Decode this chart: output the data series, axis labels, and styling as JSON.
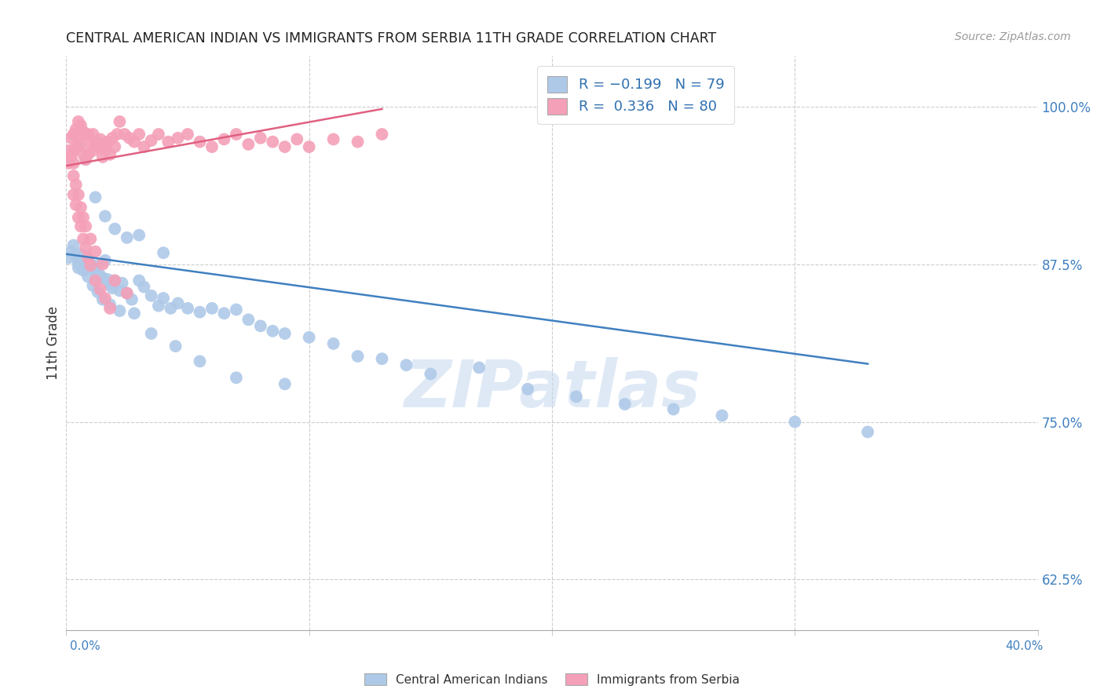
{
  "title": "CENTRAL AMERICAN INDIAN VS IMMIGRANTS FROM SERBIA 11TH GRADE CORRELATION CHART",
  "source": "Source: ZipAtlas.com",
  "ylabel": "11th Grade",
  "yticks": [
    0.625,
    0.75,
    0.875,
    1.0
  ],
  "ytick_labels": [
    "62.5%",
    "75.0%",
    "87.5%",
    "100.0%"
  ],
  "xmin": 0.0,
  "xmax": 0.4,
  "ymin": 0.585,
  "ymax": 1.04,
  "blue_color": "#aec9e8",
  "pink_color": "#f4a0b8",
  "line_blue": "#4080c0",
  "line_pink": "#e06080",
  "watermark_text": "ZIPatlas",
  "blue_scatter_x": [
    0.001,
    0.002,
    0.003,
    0.004,
    0.005,
    0.005,
    0.006,
    0.007,
    0.007,
    0.008,
    0.009,
    0.01,
    0.011,
    0.012,
    0.013,
    0.014,
    0.015,
    0.016,
    0.017,
    0.018,
    0.019,
    0.02,
    0.022,
    0.023,
    0.025,
    0.027,
    0.03,
    0.032,
    0.035,
    0.038,
    0.04,
    0.043,
    0.046,
    0.05,
    0.055,
    0.06,
    0.065,
    0.07,
    0.075,
    0.08,
    0.085,
    0.09,
    0.1,
    0.11,
    0.12,
    0.13,
    0.14,
    0.15,
    0.17,
    0.19,
    0.21,
    0.23,
    0.25,
    0.27,
    0.3,
    0.33,
    0.005,
    0.008,
    0.012,
    0.016,
    0.02,
    0.025,
    0.03,
    0.04,
    0.005,
    0.007,
    0.009,
    0.011,
    0.013,
    0.015,
    0.018,
    0.022,
    0.028,
    0.035,
    0.045,
    0.055,
    0.07,
    0.09
  ],
  "blue_scatter_y": [
    0.88,
    0.885,
    0.89,
    0.882,
    0.878,
    0.872,
    0.883,
    0.876,
    0.87,
    0.882,
    0.878,
    0.875,
    0.871,
    0.869,
    0.874,
    0.866,
    0.864,
    0.878,
    0.863,
    0.859,
    0.856,
    0.862,
    0.854,
    0.86,
    0.852,
    0.847,
    0.862,
    0.857,
    0.85,
    0.842,
    0.848,
    0.84,
    0.844,
    0.84,
    0.837,
    0.84,
    0.836,
    0.839,
    0.831,
    0.826,
    0.822,
    0.82,
    0.817,
    0.812,
    0.802,
    0.8,
    0.795,
    0.788,
    0.793,
    0.776,
    0.77,
    0.764,
    0.76,
    0.755,
    0.75,
    0.742,
    0.968,
    0.958,
    0.928,
    0.913,
    0.903,
    0.896,
    0.898,
    0.884,
    0.875,
    0.872,
    0.865,
    0.858,
    0.853,
    0.847,
    0.843,
    0.838,
    0.836,
    0.82,
    0.81,
    0.798,
    0.785,
    0.78
  ],
  "pink_scatter_x": [
    0.001,
    0.001,
    0.002,
    0.002,
    0.003,
    0.003,
    0.003,
    0.004,
    0.004,
    0.005,
    0.005,
    0.006,
    0.006,
    0.007,
    0.007,
    0.008,
    0.008,
    0.009,
    0.009,
    0.01,
    0.011,
    0.011,
    0.012,
    0.013,
    0.014,
    0.015,
    0.015,
    0.016,
    0.017,
    0.018,
    0.019,
    0.02,
    0.021,
    0.022,
    0.024,
    0.026,
    0.028,
    0.03,
    0.032,
    0.035,
    0.038,
    0.042,
    0.046,
    0.05,
    0.055,
    0.06,
    0.065,
    0.07,
    0.075,
    0.08,
    0.085,
    0.09,
    0.095,
    0.1,
    0.11,
    0.12,
    0.13,
    0.003,
    0.004,
    0.005,
    0.006,
    0.007,
    0.008,
    0.01,
    0.012,
    0.015,
    0.02,
    0.025,
    0.003,
    0.004,
    0.005,
    0.006,
    0.007,
    0.008,
    0.009,
    0.01,
    0.012,
    0.014,
    0.016,
    0.018
  ],
  "pink_scatter_y": [
    0.965,
    0.955,
    0.975,
    0.96,
    0.978,
    0.965,
    0.955,
    0.982,
    0.968,
    0.988,
    0.975,
    0.985,
    0.97,
    0.98,
    0.962,
    0.978,
    0.958,
    0.978,
    0.962,
    0.97,
    0.978,
    0.965,
    0.972,
    0.968,
    0.974,
    0.97,
    0.96,
    0.966,
    0.972,
    0.962,
    0.975,
    0.968,
    0.978,
    0.988,
    0.978,
    0.975,
    0.972,
    0.978,
    0.968,
    0.973,
    0.978,
    0.972,
    0.975,
    0.978,
    0.972,
    0.968,
    0.974,
    0.978,
    0.97,
    0.975,
    0.972,
    0.968,
    0.974,
    0.968,
    0.974,
    0.972,
    0.978,
    0.945,
    0.938,
    0.93,
    0.92,
    0.912,
    0.905,
    0.895,
    0.885,
    0.875,
    0.862,
    0.852,
    0.93,
    0.922,
    0.912,
    0.905,
    0.895,
    0.888,
    0.88,
    0.874,
    0.862,
    0.855,
    0.848,
    0.84
  ],
  "blue_line_x": [
    0.0,
    0.33
  ],
  "blue_line_y": [
    0.883,
    0.796
  ],
  "pink_line_x": [
    0.0,
    0.13
  ],
  "pink_line_y": [
    0.953,
    0.998
  ]
}
